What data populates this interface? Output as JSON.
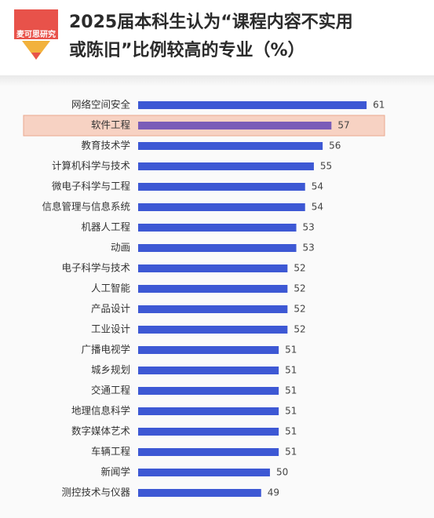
{
  "logo": "麦可思研究",
  "chart_data": {
    "type": "bar",
    "orientation": "horizontal",
    "title": "2025届本科生认为“课程内容不实用或陈旧”比例较高的专业（%）",
    "title_lines": [
      "2025届本科生认为“课程内容不实用",
      "或陈旧”比例较高的专业（%）"
    ],
    "categories": [
      "网络空间安全",
      "软件工程",
      "教育技术学",
      "计算机科学与技术",
      "微电子科学与工程",
      "信息管理与信息系统",
      "机器人工程",
      "动画",
      "电子科学与技术",
      "人工智能",
      "产品设计",
      "工业设计",
      "广播电视学",
      "城乡规划",
      "交通工程",
      "地理信息科学",
      "数字媒体艺术",
      "车辆工程",
      "新闻学",
      "测控技术与仪器"
    ],
    "values": [
      61,
      57,
      56,
      55,
      54,
      54,
      53,
      53,
      52,
      52,
      52,
      52,
      51,
      51,
      51,
      51,
      51,
      51,
      50,
      49
    ],
    "color": "#3d58d4",
    "highlight": 1,
    "highlight_color": "#7a5cb8",
    "xlim": [
      35,
      63
    ]
  }
}
